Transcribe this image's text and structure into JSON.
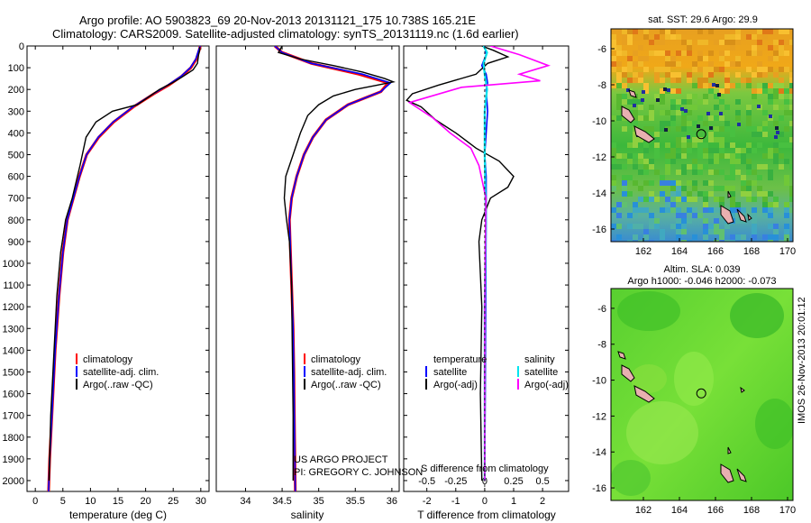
{
  "title": {
    "line1": "Argo profile: AO 5903823_69 20-Nov-2013 20131121_175 10.738S 165.21E",
    "line2": "Climatology: CARS2009. Satellite-adjusted climatology: synTS_20131119.nc (1.6d earlier)"
  },
  "colors": {
    "climatology": "#ff0000",
    "satellite": "#0000ff",
    "argo": "#000000",
    "sal_sat": "#00e5ee",
    "sal_argo": "#ff00ff",
    "land": "#e8b0b0"
  },
  "chart_data": [
    {
      "type": "line",
      "id": "temperature",
      "xlabel": "temperature (deg C)",
      "ylabel": "",
      "xlim": [
        -1.5,
        31.5
      ],
      "ylim": [
        2050,
        0
      ],
      "xticks": [
        "0",
        "5",
        "10",
        "15",
        "20",
        "25",
        "30"
      ],
      "xtick_values": [
        0,
        5,
        10,
        15,
        20,
        25,
        30
      ],
      "yticks": [
        "0",
        "100",
        "200",
        "300",
        "400",
        "500",
        "600",
        "700",
        "800",
        "900",
        "1000",
        "1100",
        "1200",
        "1300",
        "1400",
        "1500",
        "1600",
        "1700",
        "1800",
        "1900",
        "2000"
      ],
      "legend": [
        "climatology",
        "satellite-adj. clim.",
        "Argo(..raw -QC)"
      ],
      "series": [
        {
          "name": "climatology",
          "x": [
            29.9,
            29.7,
            29.2,
            28.2,
            26.5,
            24.2,
            21.5,
            17.8,
            14.2,
            11.5,
            9.3,
            8.0,
            6.9,
            5.8,
            5.0,
            4.3,
            3.6,
            3.1,
            2.6,
            2.4
          ],
          "y": [
            0,
            20,
            60,
            100,
            140,
            180,
            220,
            280,
            350,
            420,
            500,
            600,
            700,
            800,
            950,
            1150,
            1400,
            1650,
            1900,
            2050
          ]
        },
        {
          "name": "satellite",
          "x": [
            29.9,
            29.6,
            29.1,
            28.1,
            26.4,
            24.0,
            21.4,
            17.7,
            14.1,
            11.4,
            9.3,
            8.0,
            6.9,
            5.8,
            5.0,
            4.3,
            3.6,
            3.1,
            2.6,
            2.4
          ],
          "y": [
            0,
            20,
            60,
            100,
            140,
            180,
            220,
            280,
            350,
            420,
            500,
            600,
            700,
            800,
            950,
            1150,
            1400,
            1650,
            1900,
            2050
          ]
        },
        {
          "name": "argo",
          "x": [
            29.8,
            29.8,
            29.6,
            29.4,
            28.6,
            26.8,
            24.8,
            22.5,
            20.8,
            18.5,
            14.0,
            11.0,
            9.2,
            8.1,
            6.7,
            5.5,
            4.6,
            3.9,
            3.4,
            2.8,
            2.5
          ],
          "y": [
            5,
            20,
            40,
            80,
            110,
            140,
            170,
            200,
            230,
            270,
            300,
            350,
            420,
            550,
            700,
            800,
            950,
            1150,
            1400,
            1700,
            2000
          ]
        }
      ]
    },
    {
      "type": "line",
      "id": "salinity",
      "xlabel": "salinity",
      "xlim": [
        33.6,
        36.1
      ],
      "ylim": [
        2050,
        0
      ],
      "xticks": [
        "34",
        "34.5",
        "35",
        "35.5",
        "36"
      ],
      "xtick_values": [
        34,
        34.5,
        35,
        35.5,
        36
      ],
      "legend": [
        "climatology",
        "satellite-adj. clim.",
        "Argo(..raw -QC)"
      ],
      "annotations": [
        "US ARGO PROJECT",
        "PI: GREGORY C. JOHNSON"
      ],
      "series": [
        {
          "name": "climatology",
          "x": [
            34.4,
            34.5,
            34.9,
            35.55,
            35.95,
            35.85,
            35.4,
            35.1,
            34.92,
            34.8,
            34.7,
            34.63,
            34.6,
            34.61,
            34.63,
            34.65,
            34.66,
            34.67,
            34.68
          ],
          "y": [
            0,
            30,
            80,
            130,
            170,
            210,
            270,
            340,
            420,
            500,
            600,
            700,
            800,
            900,
            1100,
            1300,
            1500,
            1800,
            2050
          ]
        },
        {
          "name": "satellite",
          "x": [
            34.4,
            34.5,
            34.9,
            35.6,
            35.98,
            35.85,
            35.4,
            35.1,
            34.92,
            34.8,
            34.7,
            34.63,
            34.6,
            34.61,
            34.63,
            34.65,
            34.66,
            34.67,
            34.68
          ],
          "y": [
            0,
            30,
            80,
            130,
            170,
            210,
            270,
            340,
            420,
            500,
            600,
            700,
            800,
            900,
            1100,
            1300,
            1500,
            1800,
            2050
          ]
        },
        {
          "name": "argo",
          "x": [
            34.5,
            34.45,
            34.75,
            35.2,
            35.6,
            35.9,
            36.02,
            35.8,
            35.5,
            35.2,
            35.0,
            34.85,
            34.75,
            34.65,
            34.55,
            34.53,
            34.56,
            34.6,
            34.63,
            34.64,
            34.65,
            34.65
          ],
          "y": [
            0,
            30,
            60,
            90,
            120,
            150,
            165,
            180,
            200,
            230,
            270,
            320,
            400,
            500,
            600,
            700,
            800,
            900,
            1100,
            1400,
            1700,
            2000
          ]
        }
      ]
    },
    {
      "type": "line",
      "id": "difference",
      "xlabel": "T difference from climatology",
      "xlabel2": "S difference from climatology",
      "xlim": [
        -2.8,
        2.9
      ],
      "ylim": [
        2050,
        0
      ],
      "xticks": [
        "-2",
        "-1",
        "0",
        "1",
        "2"
      ],
      "xtick_values": [
        -2,
        -1,
        0,
        1,
        2
      ],
      "xticks_top": [
        "-0.5",
        "-0.25",
        "0",
        "0.25",
        "0.5"
      ],
      "legend_left": [
        "temperature",
        "satellite",
        "Argo(-adj)"
      ],
      "legend_right": [
        "salinity",
        "satellite",
        "Argo(-adj)"
      ],
      "series": [
        {
          "name": "T satellite",
          "x": [
            0,
            0.05,
            -0.1,
            0.05,
            0.1,
            0.05,
            0.1,
            0.05,
            0.0,
            0.05,
            0.05,
            0.03,
            0.02,
            0.0
          ],
          "y": [
            0,
            40,
            90,
            130,
            170,
            200,
            300,
            400,
            500,
            600,
            800,
            1200,
            1600,
            2000
          ]
        },
        {
          "name": "T Argo",
          "x": [
            -0.1,
            0.3,
            0.8,
            0.1,
            -0.3,
            -1.6,
            -2.5,
            -2.7,
            -2.2,
            -1.7,
            -1.0,
            -0.3,
            0.5,
            1.0,
            0.8,
            0.2,
            -0.1,
            -0.2,
            -0.1,
            -0.15,
            -0.1
          ],
          "y": [
            0,
            20,
            50,
            80,
            130,
            180,
            220,
            250,
            280,
            340,
            400,
            470,
            530,
            600,
            650,
            700,
            800,
            900,
            1200,
            1600,
            2000
          ]
        },
        {
          "name": "S satellite",
          "x": [
            -0.01,
            0.02,
            -0.01,
            0.0,
            0.02,
            0.0,
            0.0,
            0.01,
            0.0,
            0.0
          ],
          "y": [
            0,
            30,
            80,
            130,
            200,
            300,
            500,
            800,
            1200,
            2000
          ]
        },
        {
          "name": "S Argo",
          "x": [
            0.05,
            0.3,
            0.55,
            0.3,
            0.48,
            -0.2,
            -0.65,
            -0.45,
            -0.3,
            -0.12,
            -0.05,
            0.01,
            0.0,
            0.0
          ],
          "y": [
            0,
            40,
            90,
            130,
            160,
            190,
            260,
            330,
            400,
            470,
            550,
            700,
            1200,
            2000
          ]
        }
      ]
    },
    {
      "type": "heatmap",
      "id": "sst_map",
      "title": "sat. SST: 29.6 Argo: 29.9",
      "xticks": [
        "162",
        "164",
        "166",
        "168",
        "170"
      ],
      "xtick_values": [
        162,
        164,
        166,
        168,
        170
      ],
      "yticks": [
        "-6",
        "-8",
        "-10",
        "-12",
        "-14",
        "-16"
      ],
      "ytick_values": [
        -6,
        -8,
        -10,
        -12,
        -14,
        -16
      ],
      "xlim": [
        160.2,
        170.3
      ],
      "ylim": [
        -16.7,
        -4.9
      ],
      "argo_position": {
        "lon": 165.21,
        "lat": -10.738
      }
    },
    {
      "type": "heatmap",
      "id": "sla_map",
      "title": "Altim. SLA: 0.039",
      "subtitle": "Argo h1000: -0.046 h2000: -0.073",
      "xticks": [
        "162",
        "164",
        "166",
        "168",
        "170"
      ],
      "xtick_values": [
        162,
        164,
        166,
        168,
        170
      ],
      "yticks": [
        "-6",
        "-8",
        "-10",
        "-12",
        "-14",
        "-16"
      ],
      "ytick_values": [
        -6,
        -8,
        -10,
        -12,
        -14,
        -16
      ],
      "xlim": [
        160.2,
        170.3
      ],
      "ylim": [
        -16.7,
        -4.9
      ],
      "argo_position": {
        "lon": 165.21,
        "lat": -10.738
      }
    }
  ],
  "watermark": "IMOS 26-Nov-2013 20:01:12"
}
